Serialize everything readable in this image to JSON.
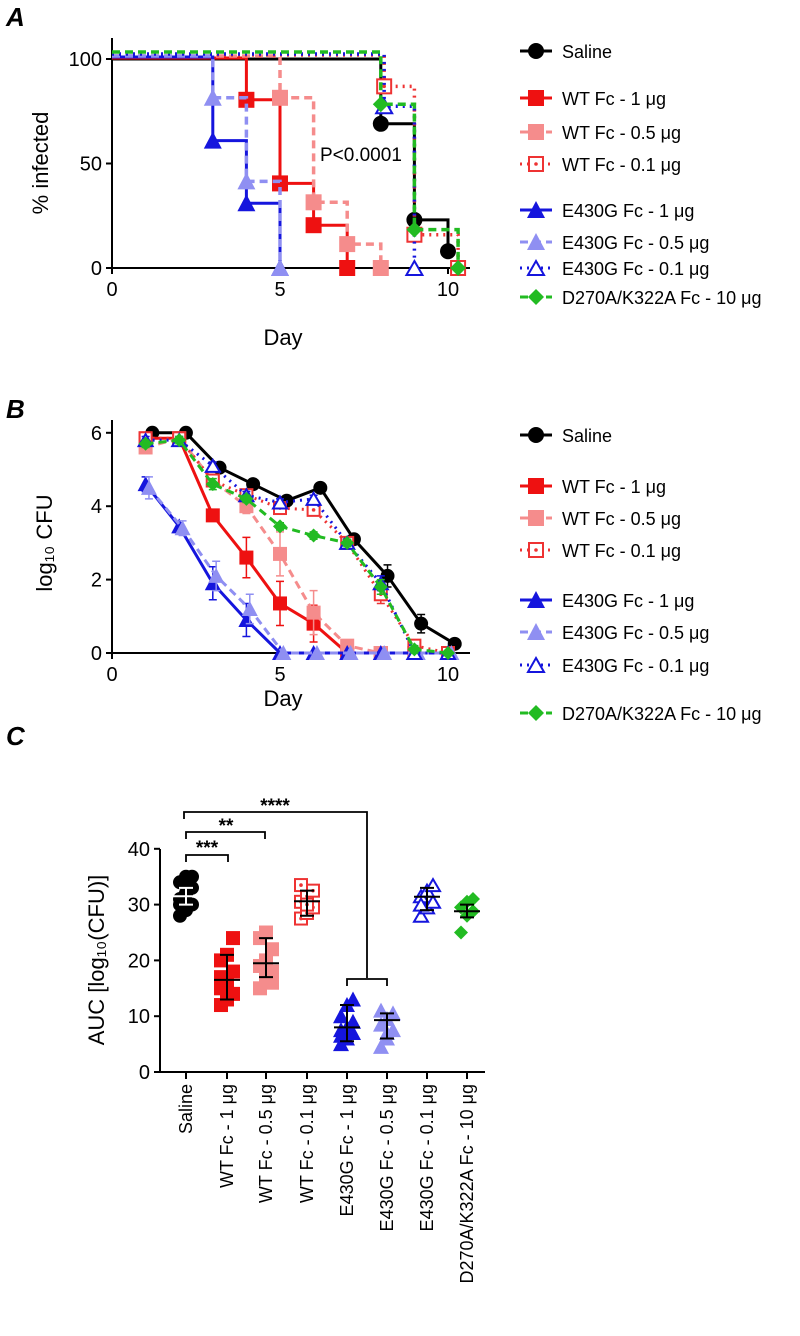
{
  "series_styles": [
    {
      "name": "Saline",
      "color": "#000000",
      "marker": "circle",
      "line": "solid"
    },
    {
      "name": "WT Fc - 1 μg",
      "color": "#ee1111",
      "marker": "square",
      "line": "solid"
    },
    {
      "name": "WT Fc - 0.5 μg",
      "color": "#f58c8c",
      "marker": "square",
      "line": "dashed"
    },
    {
      "name": "WT Fc - 0.1 μg",
      "color": "#ee3333",
      "marker": "open-square-dot",
      "line": "dotted"
    },
    {
      "name": "E430G Fc - 1 μg",
      "color": "#1515dd",
      "marker": "triangle",
      "line": "solid"
    },
    {
      "name": "E430G Fc - 0.5 μg",
      "color": "#8f8ff2",
      "marker": "triangle",
      "line": "dashed"
    },
    {
      "name": "E430G Fc - 0.1 μg",
      "color": "#1515dd",
      "marker": "open-triangle",
      "line": "dotted"
    },
    {
      "name": "D270A/K322A Fc - 10 μg",
      "color": "#22bb22",
      "marker": "diamond",
      "line": "dashed"
    }
  ],
  "chart_data": [
    {
      "panel": "A",
      "type": "line",
      "subtype": "survival-step",
      "xlabel": "Day",
      "ylabel": "% infected",
      "xlim": [
        0,
        10.5
      ],
      "ylim": [
        0,
        100
      ],
      "xticks": [
        0,
        5,
        10
      ],
      "yticks": [
        0,
        50,
        100
      ],
      "annotation": "P<0.0001",
      "legend": "right",
      "series": [
        {
          "name": "Saline",
          "steps": [
            [
              8,
              69
            ],
            [
              9,
              23
            ],
            [
              10,
              8
            ]
          ]
        },
        {
          "name": "WT Fc - 1 μg",
          "steps": [
            [
              4,
              80
            ],
            [
              5,
              40
            ],
            [
              6,
              20
            ],
            [
              7,
              0
            ]
          ]
        },
        {
          "name": "WT Fc - 0.5 μg",
          "steps": [
            [
              5,
              80
            ],
            [
              6,
              30
            ],
            [
              7,
              10
            ],
            [
              8,
              0
            ]
          ]
        },
        {
          "name": "WT Fc - 0.1 μg",
          "steps": [
            [
              8.1,
              85
            ],
            [
              9,
              14
            ],
            [
              10.3,
              0
            ]
          ]
        },
        {
          "name": "E430G Fc - 1 μg",
          "steps": [
            [
              3,
              60
            ],
            [
              4,
              30
            ],
            [
              5,
              0
            ]
          ]
        },
        {
          "name": "E430G Fc - 0.5 μg",
          "steps": [
            [
              3,
              80
            ],
            [
              4,
              40
            ],
            [
              5,
              0
            ]
          ]
        },
        {
          "name": "E430G Fc - 0.1 μg",
          "steps": [
            [
              8.1,
              75
            ],
            [
              9,
              0
            ]
          ]
        },
        {
          "name": "D270A/K322A Fc - 10 μg",
          "steps": [
            [
              8,
              75
            ],
            [
              9,
              15
            ],
            [
              10.3,
              0
            ]
          ]
        }
      ]
    },
    {
      "panel": "B",
      "type": "line",
      "xlabel": "Day",
      "ylabel": "log₁₀ CFU",
      "xlim": [
        0,
        10.5
      ],
      "ylim": [
        0,
        6.5
      ],
      "xticks": [
        0,
        5,
        10
      ],
      "yticks": [
        0,
        2,
        4,
        6
      ],
      "legend": "right",
      "x": [
        1,
        2,
        3,
        4,
        5,
        6,
        7,
        8,
        9,
        10
      ],
      "series": [
        {
          "name": "Saline",
          "values": [
            6.0,
            6.0,
            5.05,
            4.6,
            4.15,
            4.5,
            3.1,
            2.1,
            0.8,
            0.25
          ],
          "err": [
            0.1,
            0.1,
            0.1,
            0.1,
            0.1,
            0.1,
            0.1,
            0.3,
            0.25,
            0.1
          ]
        },
        {
          "name": "WT Fc - 1 μg",
          "values": [
            5.85,
            5.85,
            3.75,
            2.6,
            1.35,
            0.8,
            0,
            0,
            0,
            0
          ],
          "err": [
            0.1,
            0.1,
            0.1,
            0.55,
            0.6,
            0.5,
            0,
            0,
            0,
            0
          ]
        },
        {
          "name": "WT Fc - 0.5 μg",
          "values": [
            5.6,
            5.85,
            4.7,
            4.0,
            2.7,
            1.1,
            0.2,
            0,
            0,
            0
          ],
          "err": [
            0.1,
            0.1,
            0.1,
            0.2,
            0.6,
            0.6,
            0.15,
            0,
            0,
            0
          ]
        },
        {
          "name": "WT Fc - 0.1 μg",
          "values": [
            5.85,
            5.85,
            4.7,
            4.3,
            3.95,
            3.9,
            3.0,
            1.6,
            0.2,
            0
          ],
          "err": [
            0.1,
            0.1,
            0.15,
            0.1,
            0.1,
            0.1,
            0.1,
            0.25,
            0.1,
            0
          ]
        },
        {
          "name": "E430G Fc - 1 μg",
          "values": [
            4.6,
            3.45,
            1.9,
            0.9,
            0,
            0,
            0,
            0,
            0,
            0
          ],
          "err": [
            0.2,
            0.1,
            0.45,
            0.45,
            0,
            0,
            0,
            0,
            0,
            0
          ]
        },
        {
          "name": "E430G Fc - 0.5 μg",
          "values": [
            4.5,
            3.4,
            2.1,
            1.2,
            0,
            0,
            0,
            0,
            0,
            0
          ],
          "err": [
            0.3,
            0.2,
            0.4,
            0.4,
            0,
            0,
            0,
            0,
            0,
            0
          ]
        },
        {
          "name": "E430G Fc - 0.1 μg",
          "values": [
            5.8,
            5.8,
            5.1,
            4.3,
            4.1,
            4.2,
            3.0,
            1.9,
            0,
            0
          ],
          "err": [
            0.1,
            0.1,
            0.1,
            0.1,
            0.1,
            0.1,
            0.1,
            0.2,
            0,
            0
          ]
        },
        {
          "name": "D270A/K322A Fc - 10 μg",
          "values": [
            5.7,
            5.8,
            4.6,
            4.2,
            3.45,
            3.2,
            3.0,
            1.8,
            0.1,
            0
          ],
          "err": [
            0.1,
            0.1,
            0.15,
            0.1,
            0.1,
            0.1,
            0.1,
            0.2,
            0.1,
            0
          ]
        }
      ]
    },
    {
      "panel": "C",
      "type": "scatter",
      "subtype": "dot-plot-mean-sd",
      "ylabel": "AUC [log₁₀(CFU)]",
      "ylim": [
        0,
        40
      ],
      "yticks": [
        0,
        10,
        20,
        30,
        40
      ],
      "categories": [
        "Saline",
        "WT Fc - 1 μg",
        "WT Fc - 0.5 μg",
        "WT Fc - 0.1 μg",
        "E430G Fc - 1 μg",
        "E430G Fc - 0.5 μg",
        "E430G Fc - 0.1 μg",
        "D270A/K322A Fc - 10 μg"
      ],
      "mean": [
        31.5,
        16.5,
        19.5,
        30.6,
        8.0,
        9.3,
        31.4,
        28.8
      ],
      "sd_low": [
        30.0,
        13.0,
        17.0,
        28.0,
        5.5,
        6.0,
        29.0,
        27.7
      ],
      "sd_high": [
        33.0,
        21.0,
        24.0,
        32.5,
        12.0,
        10.5,
        33.0,
        30.0
      ],
      "points": [
        [
          28,
          29,
          30,
          31,
          32,
          33,
          34,
          35,
          35,
          30,
          32
        ],
        [
          12,
          13,
          14,
          15,
          16,
          18,
          20,
          21,
          24,
          17,
          14
        ],
        [
          15,
          17,
          18,
          19,
          20,
          22,
          24,
          25,
          16
        ],
        [
          27.5,
          28.5,
          29.5,
          30.5,
          31.5,
          32.5,
          33.5,
          30
        ],
        [
          5,
          6,
          7,
          7.5,
          8,
          9,
          10,
          12,
          13,
          6.5
        ],
        [
          4.5,
          6,
          7.5,
          8.5,
          9.5,
          10.5,
          11,
          7
        ],
        [
          28,
          29.5,
          30.5,
          31.5,
          32.5,
          33.5,
          30
        ],
        [
          25,
          28,
          28.8,
          29.5,
          30.5,
          31
        ]
      ],
      "significance": [
        {
          "label": "***",
          "from": "Saline",
          "to": "WT Fc - 1 μg"
        },
        {
          "label": "**",
          "from": "Saline",
          "to": "WT Fc - 0.5 μg"
        },
        {
          "label": "****",
          "from": "Saline",
          "to": "E430G Fc - 1 μg, E430G Fc - 0.5 μg"
        }
      ]
    }
  ]
}
